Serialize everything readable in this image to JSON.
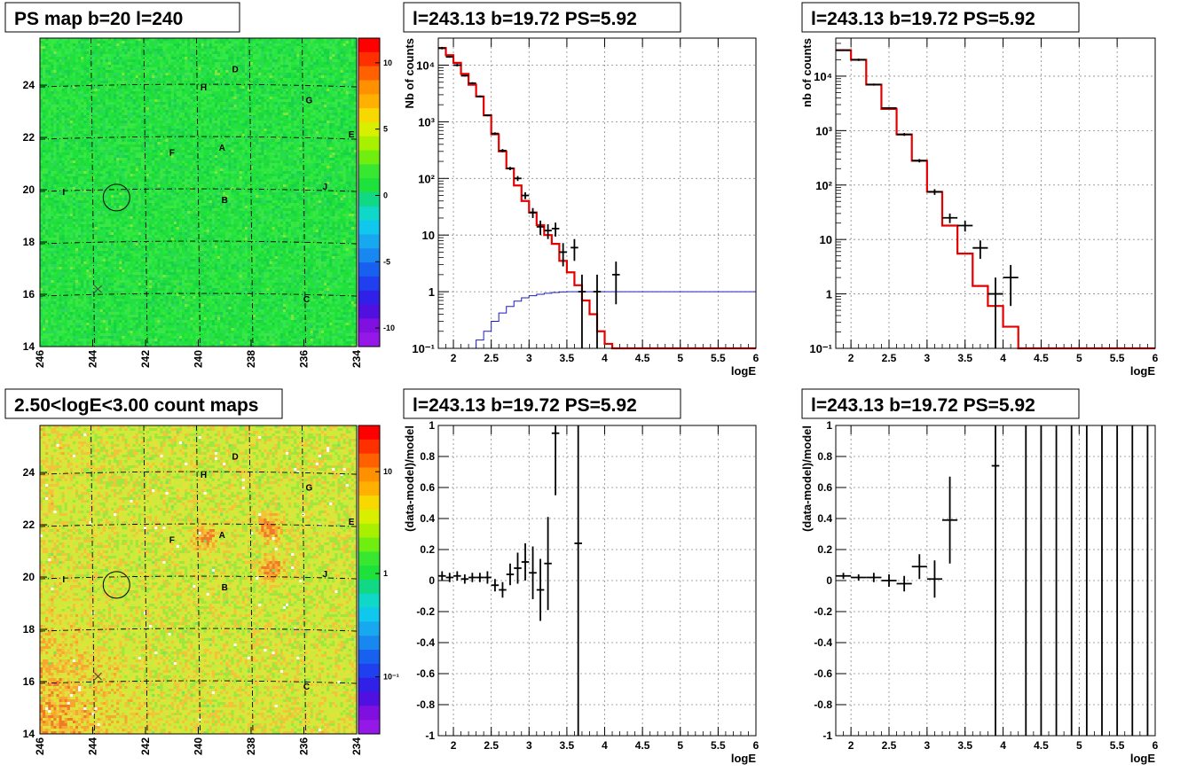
{
  "colors": {
    "map_green": "#1ee13c",
    "map_yellow": "#d8e83a",
    "map_orange": "#f0892a",
    "model_red": "#e50000",
    "model_blue": "#1c1cbf",
    "data_black": "#000000",
    "grid_gray": "#9a9a9a"
  },
  "chart_data": [
    {
      "id": "ps-map",
      "type": "heatmap",
      "title": "PS map b=20 l=240",
      "x_ticks": [
        "246",
        "244",
        "242",
        "240",
        "238",
        "236",
        "234"
      ],
      "y_ticks": [
        "14",
        "16",
        "18",
        "20",
        "22",
        "24"
      ],
      "xlim": [
        246,
        234
      ],
      "ylim": [
        14,
        25.8
      ],
      "colorbar": {
        "ticks": [
          "10",
          "5",
          "0",
          "-5",
          "-10"
        ],
        "range": [
          -12,
          12
        ]
      },
      "labels": [
        {
          "text": "D",
          "l": 238.6,
          "b": 24.5
        },
        {
          "text": "H",
          "l": 239.8,
          "b": 23.8
        },
        {
          "text": "G",
          "l": 235.8,
          "b": 23.3
        },
        {
          "text": "E",
          "l": 234.2,
          "b": 22.0
        },
        {
          "text": "F",
          "l": 241.0,
          "b": 21.3
        },
        {
          "text": "A",
          "l": 239.1,
          "b": 21.5
        },
        {
          "text": "J",
          "l": 235.2,
          "b": 20.0
        },
        {
          "text": "I",
          "l": 245.1,
          "b": 19.8
        },
        {
          "text": "B",
          "l": 239.0,
          "b": 19.5
        },
        {
          "text": "C",
          "l": 235.9,
          "b": 15.7
        }
      ],
      "circle": {
        "l": 243.1,
        "b": 19.7
      },
      "cross": {
        "l": 243.8,
        "b": 16.2
      }
    },
    {
      "id": "count-map",
      "type": "heatmap",
      "title": "2.50<logE<3.00 count maps",
      "x_ticks": [
        "246",
        "244",
        "242",
        "240",
        "238",
        "236",
        "234"
      ],
      "y_ticks": [
        "14",
        "16",
        "18",
        "20",
        "22",
        "24"
      ],
      "xlim": [
        246,
        234
      ],
      "ylim": [
        14,
        25.8
      ],
      "colorbar": {
        "ticks": [
          "10",
          "1",
          "10⁻¹"
        ],
        "log": true
      },
      "labels": [
        {
          "text": "D",
          "l": 238.6,
          "b": 24.5
        },
        {
          "text": "H",
          "l": 239.8,
          "b": 23.8
        },
        {
          "text": "G",
          "l": 235.8,
          "b": 23.3
        },
        {
          "text": "E",
          "l": 234.2,
          "b": 22.0
        },
        {
          "text": "F",
          "l": 241.0,
          "b": 21.3
        },
        {
          "text": "A",
          "l": 239.1,
          "b": 21.5
        },
        {
          "text": "J",
          "l": 235.2,
          "b": 20.0
        },
        {
          "text": "I",
          "l": 245.1,
          "b": 19.8
        },
        {
          "text": "B",
          "l": 239.0,
          "b": 19.5
        },
        {
          "text": "C",
          "l": 235.9,
          "b": 15.7
        }
      ],
      "circle": {
        "l": 243.1,
        "b": 19.7
      },
      "cross": {
        "l": 243.8,
        "b": 16.2
      }
    },
    {
      "id": "spectrum-1",
      "type": "line",
      "title": "l=243.13 b=19.72 PS=5.92",
      "xlabel": "logE",
      "ylabel": "Nb of counts",
      "xlim": [
        1.8,
        6
      ],
      "ylim": [
        0.1,
        30000
      ],
      "log_y": true,
      "x_ticks": [
        "2",
        "2.5",
        "3",
        "3.5",
        "4",
        "4.5",
        "5",
        "5.5",
        "6"
      ],
      "y_ticks": [
        "10⁻¹",
        "1",
        "10",
        "10²",
        "10³",
        "10⁴"
      ],
      "model_red": {
        "edges": [
          1.8,
          1.9,
          2.0,
          2.1,
          2.2,
          2.3,
          2.4,
          2.5,
          2.6,
          2.7,
          2.8,
          2.9,
          3.0,
          3.1,
          3.2,
          3.3,
          3.4,
          3.5,
          3.6,
          3.7,
          3.8,
          3.9,
          4.0,
          4.1,
          6.0
        ],
        "values": [
          20000,
          15000,
          11000,
          7000,
          4500,
          2800,
          1300,
          600,
          300,
          150,
          75,
          40,
          25,
          15,
          10,
          7,
          3.5,
          2.2,
          1.3,
          0.7,
          0.4,
          0.2,
          0.12,
          0.1
        ]
      },
      "model_blue": {
        "edges": [
          1.8,
          2.3,
          2.4,
          2.5,
          2.6,
          2.7,
          2.8,
          2.9,
          3.0,
          3.1,
          3.2,
          3.3,
          3.4,
          3.5,
          6.0
        ],
        "values": [
          0.1,
          0.14,
          0.2,
          0.3,
          0.42,
          0.55,
          0.68,
          0.78,
          0.85,
          0.9,
          0.94,
          0.97,
          0.99,
          1.0
        ]
      },
      "points": [
        {
          "x": 1.85,
          "y": 20000,
          "dx": 0.05,
          "lo": 19000,
          "hi": 21000
        },
        {
          "x": 1.95,
          "y": 14000,
          "dx": 0.05,
          "lo": 13500,
          "hi": 14500
        },
        {
          "x": 2.05,
          "y": 10000,
          "dx": 0.05,
          "lo": 9500,
          "hi": 10500
        },
        {
          "x": 2.15,
          "y": 6500,
          "dx": 0.05,
          "lo": 6300,
          "hi": 6700
        },
        {
          "x": 2.25,
          "y": 4800,
          "dx": 0.05,
          "lo": 4600,
          "hi": 5000
        },
        {
          "x": 2.35,
          "y": 2800,
          "dx": 0.05,
          "lo": 2700,
          "hi": 2900
        },
        {
          "x": 2.45,
          "y": 1300,
          "dx": 0.05,
          "lo": 1250,
          "hi": 1350
        },
        {
          "x": 2.55,
          "y": 620,
          "dx": 0.05,
          "lo": 590,
          "hi": 650
        },
        {
          "x": 2.65,
          "y": 310,
          "dx": 0.05,
          "lo": 290,
          "hi": 330
        },
        {
          "x": 2.75,
          "y": 150,
          "dx": 0.05,
          "lo": 140,
          "hi": 160
        },
        {
          "x": 2.85,
          "y": 100,
          "dx": 0.05,
          "lo": 90,
          "hi": 110
        },
        {
          "x": 2.95,
          "y": 50,
          "dx": 0.05,
          "lo": 43,
          "hi": 57
        },
        {
          "x": 3.05,
          "y": 25,
          "dx": 0.05,
          "lo": 20,
          "hi": 30
        },
        {
          "x": 3.15,
          "y": 14,
          "dx": 0.05,
          "lo": 10,
          "hi": 18
        },
        {
          "x": 3.25,
          "y": 12,
          "dx": 0.05,
          "lo": 8.5,
          "hi": 15.5
        },
        {
          "x": 3.35,
          "y": 13,
          "dx": 0.05,
          "lo": 9.4,
          "hi": 16.6
        },
        {
          "x": 3.45,
          "y": 5,
          "dx": 0.05,
          "lo": 2.8,
          "hi": 7.2
        },
        {
          "x": 3.6,
          "y": 6,
          "dx": 0.05,
          "lo": 3.5,
          "hi": 8.5
        },
        {
          "x": 3.7,
          "y": 1,
          "dx": 0.05,
          "lo": 0.1,
          "hi": 2
        },
        {
          "x": 3.9,
          "y": 1,
          "dx": 0.05,
          "lo": 0.1,
          "hi": 2
        },
        {
          "x": 4.15,
          "y": 2,
          "dx": 0.05,
          "lo": 0.6,
          "hi": 3.4
        }
      ]
    },
    {
      "id": "spectrum-2",
      "type": "line",
      "title": "l=243.13 b=19.72 PS=5.92",
      "xlabel": "logE",
      "ylabel": "nb of counts",
      "xlim": [
        1.8,
        6
      ],
      "ylim": [
        0.1,
        50000
      ],
      "log_y": true,
      "x_ticks": [
        "2",
        "2.5",
        "3",
        "3.5",
        "4",
        "4.5",
        "5",
        "5.5",
        "6"
      ],
      "y_ticks": [
        "10⁻¹",
        "1",
        "10",
        "10²",
        "10³",
        "10⁴"
      ],
      "model_red": {
        "edges": [
          1.8,
          2.0,
          2.2,
          2.4,
          2.6,
          2.8,
          3.0,
          3.2,
          3.4,
          3.6,
          3.8,
          4.0,
          4.2,
          6.0
        ],
        "values": [
          30000,
          20000,
          7000,
          2500,
          850,
          280,
          75,
          18,
          5.5,
          1.4,
          0.6,
          0.25,
          0.1
        ]
      },
      "points": [
        {
          "x": 1.9,
          "y": 30000,
          "dx": 0.1,
          "lo": 29000,
          "hi": 31000
        },
        {
          "x": 2.1,
          "y": 20000,
          "dx": 0.1,
          "lo": 19000,
          "hi": 21000
        },
        {
          "x": 2.3,
          "y": 7000,
          "dx": 0.1,
          "lo": 6700,
          "hi": 7300
        },
        {
          "x": 2.5,
          "y": 2600,
          "dx": 0.1,
          "lo": 2500,
          "hi": 2700
        },
        {
          "x": 2.7,
          "y": 850,
          "dx": 0.1,
          "lo": 800,
          "hi": 900
        },
        {
          "x": 2.9,
          "y": 280,
          "dx": 0.1,
          "lo": 260,
          "hi": 300
        },
        {
          "x": 3.1,
          "y": 75,
          "dx": 0.1,
          "lo": 66,
          "hi": 84
        },
        {
          "x": 3.3,
          "y": 25,
          "dx": 0.1,
          "lo": 20,
          "hi": 30
        },
        {
          "x": 3.5,
          "y": 18,
          "dx": 0.1,
          "lo": 14,
          "hi": 22
        },
        {
          "x": 3.7,
          "y": 7,
          "dx": 0.1,
          "lo": 4.4,
          "hi": 9.6
        },
        {
          "x": 3.9,
          "y": 1,
          "dx": 0.1,
          "lo": 0.1,
          "hi": 2
        },
        {
          "x": 4.1,
          "y": 2,
          "dx": 0.1,
          "lo": 0.6,
          "hi": 3.4
        }
      ]
    },
    {
      "id": "residual-1",
      "type": "scatter",
      "title": "l=243.13 b=19.72 PS=5.92",
      "xlabel": "logE",
      "ylabel": "(data-model)/model",
      "xlim": [
        1.8,
        6
      ],
      "ylim": [
        -1,
        1
      ],
      "x_ticks": [
        "2",
        "2.5",
        "3",
        "3.5",
        "4",
        "4.5",
        "5",
        "5.5",
        "6"
      ],
      "y_ticks": [
        "-1",
        "-0.8",
        "-0.6",
        "-0.4",
        "-0.2",
        "0",
        "0.2",
        "0.4",
        "0.6",
        "0.8",
        "1"
      ],
      "points": [
        {
          "x": 1.85,
          "y": 0.03,
          "dx": 0.05,
          "lo": 0.0,
          "hi": 0.06
        },
        {
          "x": 1.95,
          "y": 0.02,
          "dx": 0.05,
          "lo": -0.01,
          "hi": 0.05
        },
        {
          "x": 2.05,
          "y": 0.03,
          "dx": 0.05,
          "lo": 0.0,
          "hi": 0.06
        },
        {
          "x": 2.15,
          "y": 0.01,
          "dx": 0.05,
          "lo": -0.02,
          "hi": 0.04
        },
        {
          "x": 2.25,
          "y": 0.02,
          "dx": 0.05,
          "lo": -0.01,
          "hi": 0.05
        },
        {
          "x": 2.35,
          "y": 0.02,
          "dx": 0.05,
          "lo": -0.01,
          "hi": 0.05
        },
        {
          "x": 2.45,
          "y": 0.02,
          "dx": 0.05,
          "lo": -0.02,
          "hi": 0.06
        },
        {
          "x": 2.55,
          "y": -0.03,
          "dx": 0.05,
          "lo": -0.07,
          "hi": 0.01
        },
        {
          "x": 2.65,
          "y": -0.06,
          "dx": 0.05,
          "lo": -0.11,
          "hi": -0.01
        },
        {
          "x": 2.75,
          "y": 0.04,
          "dx": 0.05,
          "lo": -0.03,
          "hi": 0.11
        },
        {
          "x": 2.85,
          "y": 0.08,
          "dx": 0.05,
          "lo": -0.02,
          "hi": 0.18
        },
        {
          "x": 2.95,
          "y": 0.12,
          "dx": 0.05,
          "lo": 0.0,
          "hi": 0.24
        },
        {
          "x": 3.05,
          "y": 0.05,
          "dx": 0.05,
          "lo": -0.12,
          "hi": 0.22
        },
        {
          "x": 3.15,
          "y": -0.06,
          "dx": 0.05,
          "lo": -0.26,
          "hi": 0.14
        },
        {
          "x": 3.25,
          "y": 0.11,
          "dx": 0.05,
          "lo": -0.19,
          "hi": 0.41
        },
        {
          "x": 3.35,
          "y": 0.95,
          "dx": 0.05,
          "lo": 0.55,
          "hi": 1.0
        },
        {
          "x": 3.65,
          "y": 0.24,
          "dx": 0.05,
          "lo": -1.0,
          "hi": 1.0
        }
      ]
    },
    {
      "id": "residual-2",
      "type": "scatter",
      "title": "l=243.13 b=19.72 PS=5.92",
      "xlabel": "logE",
      "ylabel": "(data-model)/model",
      "xlim": [
        1.8,
        6
      ],
      "ylim": [
        -1,
        1
      ],
      "x_ticks": [
        "2",
        "2.5",
        "3",
        "3.5",
        "4",
        "4.5",
        "5",
        "5.5",
        "6"
      ],
      "y_ticks": [
        "-1",
        "-0.8",
        "-0.6",
        "-0.4",
        "-0.2",
        "0",
        "0.2",
        "0.4",
        "0.6",
        "0.8",
        "1"
      ],
      "points": [
        {
          "x": 1.9,
          "y": 0.03,
          "dx": 0.1,
          "lo": 0.01,
          "hi": 0.05
        },
        {
          "x": 2.1,
          "y": 0.02,
          "dx": 0.1,
          "lo": 0.0,
          "hi": 0.04
        },
        {
          "x": 2.3,
          "y": 0.02,
          "dx": 0.1,
          "lo": -0.01,
          "hi": 0.05
        },
        {
          "x": 2.5,
          "y": 0.0,
          "dx": 0.1,
          "lo": -0.04,
          "hi": 0.04
        },
        {
          "x": 2.7,
          "y": -0.02,
          "dx": 0.1,
          "lo": -0.07,
          "hi": 0.03
        },
        {
          "x": 2.9,
          "y": 0.09,
          "dx": 0.1,
          "lo": 0.01,
          "hi": 0.17
        },
        {
          "x": 3.1,
          "y": 0.01,
          "dx": 0.1,
          "lo": -0.11,
          "hi": 0.13
        },
        {
          "x": 3.3,
          "y": 0.39,
          "dx": 0.1,
          "lo": 0.11,
          "hi": 0.67
        },
        {
          "x": 3.9,
          "y": 0.74,
          "dx": 0.05,
          "lo": -1.0,
          "hi": 1.0
        }
      ],
      "vertical_lines_x": [
        4.3,
        4.5,
        4.7,
        4.9,
        5.1,
        5.3,
        5.5,
        5.7,
        5.9
      ]
    }
  ]
}
